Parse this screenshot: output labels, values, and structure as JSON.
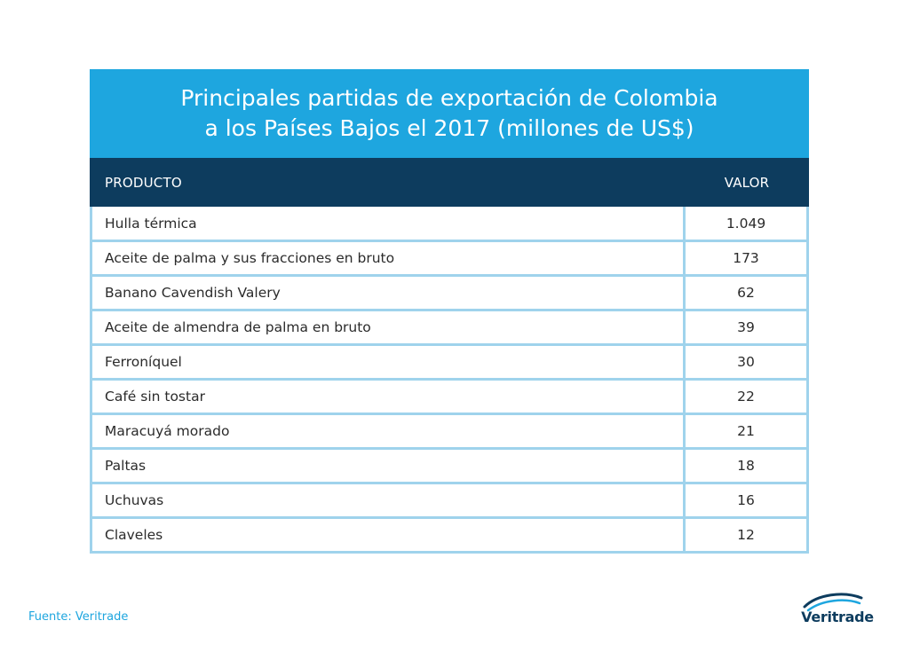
{
  "chart_data": {
    "type": "table",
    "title_line1": "Principales partidas de exportación de Colombia",
    "title_line2": "a los Países Bajos el 2017 (millones de US$)",
    "columns": [
      "PRODUCTO",
      "VALOR"
    ],
    "rows": [
      {
        "product": "Hulla térmica",
        "value": "1.049"
      },
      {
        "product": "Aceite de palma y sus fracciones en bruto",
        "value": "173"
      },
      {
        "product": "Banano Cavendish Valery",
        "value": "62"
      },
      {
        "product": "Aceite de almendra de palma en bruto",
        "value": "39"
      },
      {
        "product": "Ferroníquel",
        "value": "30"
      },
      {
        "product": "Café sin tostar",
        "value": "22"
      },
      {
        "product": "Maracuyá morado",
        "value": "21"
      },
      {
        "product": "Paltas",
        "value": "18"
      },
      {
        "product": "Uchuvas",
        "value": "16"
      },
      {
        "product": "Claveles",
        "value": "12"
      }
    ]
  },
  "source": "Fuente: Veritrade",
  "logo": {
    "text": "Veritrade",
    "icon": "veritrade-swoosh-icon"
  },
  "colors": {
    "title_bg": "#1ea6df",
    "header_bg": "#0d3c5e",
    "grid": "#9fd3ec",
    "source_text": "#1ea6df"
  }
}
